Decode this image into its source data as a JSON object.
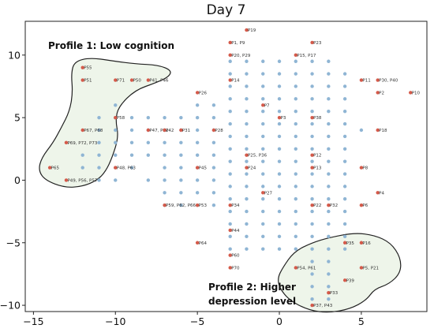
{
  "chart_data": {
    "type": "scatter",
    "title": "Day 7",
    "xlabel": "",
    "ylabel": "",
    "xlim": [
      -15.5,
      9
    ],
    "ylim": [
      -10.5,
      12.7
    ],
    "xticks": [
      "−15",
      "−10",
      "−5",
      "0",
      "5"
    ],
    "xtick_values": [
      -15,
      -10,
      -5,
      0,
      5
    ],
    "yticks": [
      "−10",
      "−5",
      "0",
      "5",
      "10"
    ],
    "ytick_values": [
      -10,
      -5,
      0,
      5,
      10
    ],
    "grid": false,
    "colors": {
      "grid_point": "#8fb5d4",
      "labeled_point": "#d55a4a",
      "region_fill": "#eef5ea",
      "region_stroke": "#222222",
      "axis": "#222222"
    },
    "grid_points": [
      [
        -3,
        9.5
      ],
      [
        -2,
        9.5
      ],
      [
        -1,
        9.5
      ],
      [
        0,
        9.5
      ],
      [
        1,
        9.5
      ],
      [
        2,
        9.5
      ],
      [
        3,
        9.5
      ],
      [
        -3,
        8.5
      ],
      [
        -2,
        8.5
      ],
      [
        -1,
        8.5
      ],
      [
        0,
        8.5
      ],
      [
        1,
        8.5
      ],
      [
        2,
        8.5
      ],
      [
        3,
        8.5
      ],
      [
        4,
        8.5
      ],
      [
        -3,
        7.5
      ],
      [
        -2,
        7.5
      ],
      [
        -1,
        7.5
      ],
      [
        0,
        7.5
      ],
      [
        1,
        7.5
      ],
      [
        2,
        7.5
      ],
      [
        3,
        7.5
      ],
      [
        4,
        7.5
      ],
      [
        -3,
        6.5
      ],
      [
        -2,
        6.5
      ],
      [
        -1,
        6.5
      ],
      [
        0,
        6.5
      ],
      [
        1,
        6.5
      ],
      [
        2,
        6.5
      ],
      [
        3,
        6.5
      ],
      [
        4,
        6.5
      ],
      [
        -10,
        6
      ],
      [
        -5,
        6
      ],
      [
        -4,
        6
      ],
      [
        -3,
        5.5
      ],
      [
        -2,
        5.5
      ],
      [
        -1,
        5.5
      ],
      [
        0,
        5.5
      ],
      [
        1,
        5.5
      ],
      [
        2,
        5.5
      ],
      [
        3,
        5.5
      ],
      [
        4,
        5.5
      ],
      [
        -11,
        5
      ],
      [
        -10,
        5
      ],
      [
        -9,
        5
      ],
      [
        -8,
        5
      ],
      [
        -7,
        5
      ],
      [
        -6,
        5
      ],
      [
        -5,
        5
      ],
      [
        -4,
        5
      ],
      [
        -3,
        4.5
      ],
      [
        -2,
        4.5
      ],
      [
        -1,
        4.5
      ],
      [
        0,
        4.5
      ],
      [
        1,
        4.5
      ],
      [
        2,
        4.5
      ],
      [
        3,
        4.5
      ],
      [
        4,
        4.5
      ],
      [
        -11,
        4
      ],
      [
        -10,
        4
      ],
      [
        -9,
        4
      ],
      [
        -8,
        4
      ],
      [
        -7,
        4
      ],
      [
        -6,
        4
      ],
      [
        -5,
        4
      ],
      [
        -4,
        4
      ],
      [
        5,
        4
      ],
      [
        -3,
        3.5
      ],
      [
        -2,
        3.5
      ],
      [
        -1,
        3.5
      ],
      [
        0,
        3.5
      ],
      [
        1,
        3.5
      ],
      [
        2,
        3.5
      ],
      [
        3,
        3.5
      ],
      [
        4,
        3.5
      ],
      [
        -11,
        3
      ],
      [
        -10,
        3
      ],
      [
        -9,
        3
      ],
      [
        -8,
        3
      ],
      [
        -7,
        3
      ],
      [
        -6,
        3
      ],
      [
        -5,
        3
      ],
      [
        -4,
        3
      ],
      [
        -3,
        2.5
      ],
      [
        -2,
        2.5
      ],
      [
        -1,
        2.5
      ],
      [
        0,
        2.5
      ],
      [
        1,
        2.5
      ],
      [
        2,
        2.5
      ],
      [
        3,
        2.5
      ],
      [
        4,
        2.5
      ],
      [
        -12,
        2
      ],
      [
        -11,
        2
      ],
      [
        -10,
        2
      ],
      [
        -9,
        2
      ],
      [
        -8,
        2
      ],
      [
        -7,
        2
      ],
      [
        -6,
        2
      ],
      [
        -5,
        2
      ],
      [
        -4,
        2
      ],
      [
        -3,
        1.5
      ],
      [
        -2,
        1.5
      ],
      [
        -1,
        1.5
      ],
      [
        0,
        1.5
      ],
      [
        1,
        1.5
      ],
      [
        2,
        1.5
      ],
      [
        3,
        1.5
      ],
      [
        4,
        1.5
      ],
      [
        -12,
        1
      ],
      [
        -11,
        1
      ],
      [
        -10,
        1
      ],
      [
        -9,
        1
      ],
      [
        -7,
        1
      ],
      [
        -6,
        1
      ],
      [
        -5,
        1
      ],
      [
        -4,
        1
      ],
      [
        -3,
        0.5
      ],
      [
        -2,
        0.5
      ],
      [
        -1,
        0.5
      ],
      [
        0,
        0.5
      ],
      [
        1,
        0.5
      ],
      [
        2,
        0.5
      ],
      [
        3,
        0.5
      ],
      [
        4,
        0.5
      ],
      [
        -11,
        0
      ],
      [
        -10,
        0
      ],
      [
        -8,
        0
      ],
      [
        -7,
        0
      ],
      [
        -6,
        0
      ],
      [
        -5,
        0
      ],
      [
        -4,
        0
      ],
      [
        -3,
        -0.5
      ],
      [
        -2,
        -0.5
      ],
      [
        -1,
        -0.5
      ],
      [
        0,
        -0.5
      ],
      [
        1,
        -0.5
      ],
      [
        2,
        -0.5
      ],
      [
        3,
        -0.5
      ],
      [
        4,
        -0.5
      ],
      [
        -7,
        -1
      ],
      [
        -6,
        -1
      ],
      [
        -5,
        -1
      ],
      [
        -4,
        -1
      ],
      [
        -3,
        -1.5
      ],
      [
        -2,
        -1.5
      ],
      [
        -1,
        -1.5
      ],
      [
        0,
        -1.5
      ],
      [
        1,
        -1.5
      ],
      [
        2,
        -1.5
      ],
      [
        3,
        -1.5
      ],
      [
        4,
        -1.5
      ],
      [
        -7,
        -2
      ],
      [
        -6,
        -2
      ],
      [
        -5,
        -2
      ],
      [
        -4,
        -2
      ],
      [
        -3,
        -2.5
      ],
      [
        -2,
        -2.5
      ],
      [
        -1,
        -2.5
      ],
      [
        0,
        -2.5
      ],
      [
        1,
        -2.5
      ],
      [
        2,
        -2.5
      ],
      [
        3,
        -2.5
      ],
      [
        4,
        -2.5
      ],
      [
        -3,
        -3.5
      ],
      [
        -2,
        -3.5
      ],
      [
        -1,
        -3.5
      ],
      [
        0,
        -3.5
      ],
      [
        1,
        -3.5
      ],
      [
        2,
        -3.5
      ],
      [
        3,
        -3.5
      ],
      [
        4,
        -3.5
      ],
      [
        -3,
        -4.5
      ],
      [
        -2,
        -4.5
      ],
      [
        -1,
        -4.5
      ],
      [
        0,
        -4.5
      ],
      [
        1,
        -4.5
      ],
      [
        2,
        -4.5
      ],
      [
        3,
        -4.5
      ],
      [
        4,
        -4.5
      ],
      [
        -3,
        -5.5
      ],
      [
        -2,
        -5.5
      ],
      [
        -1,
        -5.5
      ],
      [
        0,
        -5.5
      ],
      [
        1,
        -5.5
      ],
      [
        2,
        -5.5
      ],
      [
        3,
        -5.5
      ],
      [
        4,
        -5.5
      ],
      [
        2,
        -6.5
      ],
      [
        3,
        -6.5
      ],
      [
        2,
        -7.5
      ],
      [
        3,
        -7.5
      ],
      [
        2,
        -8.5
      ],
      [
        3,
        -8.5
      ],
      [
        2,
        -9.5
      ],
      [
        3,
        -9.5
      ]
    ],
    "labeled_points": [
      {
        "x": -2,
        "y": 12,
        "label": "P19"
      },
      {
        "x": -3,
        "y": 11,
        "label": "P1, P9"
      },
      {
        "x": 2,
        "y": 11,
        "label": "P23"
      },
      {
        "x": -3,
        "y": 10,
        "label": "P20, P29"
      },
      {
        "x": 1,
        "y": 10,
        "label": "P15, P17"
      },
      {
        "x": -12,
        "y": 9,
        "label": "P55"
      },
      {
        "x": -12,
        "y": 8,
        "label": "P51"
      },
      {
        "x": -10,
        "y": 8,
        "label": "P71"
      },
      {
        "x": -9,
        "y": 8,
        "label": "P50"
      },
      {
        "x": -8,
        "y": 8,
        "label": "P41, P46"
      },
      {
        "x": -3,
        "y": 8,
        "label": "P14"
      },
      {
        "x": 5,
        "y": 8,
        "label": "P11"
      },
      {
        "x": 6,
        "y": 8,
        "label": "P30, P40"
      },
      {
        "x": -5,
        "y": 7,
        "label": "P26"
      },
      {
        "x": 6,
        "y": 7,
        "label": "P2"
      },
      {
        "x": 8,
        "y": 7,
        "label": "P10"
      },
      {
        "x": -1,
        "y": 6,
        "label": "P7"
      },
      {
        "x": -10,
        "y": 5,
        "label": "P58"
      },
      {
        "x": 0,
        "y": 5,
        "label": "P3"
      },
      {
        "x": 2,
        "y": 5,
        "label": "P38"
      },
      {
        "x": -12,
        "y": 4,
        "label": "P67, P68"
      },
      {
        "x": -8,
        "y": 4,
        "label": "P47, P52"
      },
      {
        "x": -7,
        "y": 4,
        "label": "P42"
      },
      {
        "x": -6,
        "y": 4,
        "label": "P31"
      },
      {
        "x": -4,
        "y": 4,
        "label": "P28"
      },
      {
        "x": 6,
        "y": 4,
        "label": "P18"
      },
      {
        "x": -13,
        "y": 3,
        "label": "P69, P72, P73"
      },
      {
        "x": -2,
        "y": 2,
        "label": "P25, P36"
      },
      {
        "x": 2,
        "y": 2,
        "label": "P12"
      },
      {
        "x": -14,
        "y": 1,
        "label": "P65"
      },
      {
        "x": -10,
        "y": 1,
        "label": "P48, P63"
      },
      {
        "x": -5,
        "y": 1,
        "label": "P45"
      },
      {
        "x": -2,
        "y": 1,
        "label": "P24"
      },
      {
        "x": 2,
        "y": 1,
        "label": "P13"
      },
      {
        "x": 5,
        "y": 1,
        "label": "P8"
      },
      {
        "x": -13,
        "y": 0,
        "label": "P49, P56, P57"
      },
      {
        "x": -1,
        "y": -1,
        "label": "P27"
      },
      {
        "x": 6,
        "y": -1,
        "label": "P4"
      },
      {
        "x": -7,
        "y": -2,
        "label": "P59, P62, P66"
      },
      {
        "x": -5,
        "y": -2,
        "label": "P53"
      },
      {
        "x": -3,
        "y": -2,
        "label": "P34"
      },
      {
        "x": 2,
        "y": -2,
        "label": "P22"
      },
      {
        "x": 3,
        "y": -2,
        "label": "P32"
      },
      {
        "x": 5,
        "y": -2,
        "label": "P6"
      },
      {
        "x": -3,
        "y": -4,
        "label": "P44"
      },
      {
        "x": -5,
        "y": -5,
        "label": "P64"
      },
      {
        "x": 4,
        "y": -5,
        "label": "P35"
      },
      {
        "x": 5,
        "y": -5,
        "label": "P16"
      },
      {
        "x": -3,
        "y": -6,
        "label": "P60"
      },
      {
        "x": -3,
        "y": -7,
        "label": "P70"
      },
      {
        "x": 1,
        "y": -7,
        "label": "P54, P61"
      },
      {
        "x": 5,
        "y": -7,
        "label": "P5, P21"
      },
      {
        "x": 4,
        "y": -8,
        "label": "P39"
      },
      {
        "x": 3,
        "y": -9,
        "label": "P33"
      },
      {
        "x": 2,
        "y": -10,
        "label": "P37, P43"
      }
    ],
    "regions": [
      {
        "label_lines": [
          "Profile 1: Low cognition"
        ],
        "outline": [
          [
            -12.5,
            9.5
          ],
          [
            -11.5,
            9.8
          ],
          [
            -10,
            9.5
          ],
          [
            -8.8,
            9.3
          ],
          [
            -7.4,
            9.2
          ],
          [
            -6.6,
            8.8
          ],
          [
            -6.7,
            8.3
          ],
          [
            -7.5,
            7.8
          ],
          [
            -8.8,
            7.2
          ],
          [
            -9.8,
            5.9
          ],
          [
            -10,
            4.8
          ],
          [
            -9.8,
            3.5
          ],
          [
            -10.2,
            1.8
          ],
          [
            -10.6,
            0.7
          ],
          [
            -11.1,
            0
          ],
          [
            -12,
            -0.5
          ],
          [
            -13.1,
            -0.6
          ],
          [
            -14.3,
            0
          ],
          [
            -14.7,
            0.8
          ],
          [
            -14.5,
            1.8
          ],
          [
            -13.8,
            3
          ],
          [
            -13.3,
            4.2
          ],
          [
            -12.8,
            5.5
          ],
          [
            -12.6,
            7
          ],
          [
            -12.7,
            8.5
          ]
        ]
      },
      {
        "label_lines": [
          "Profile 2: Higher",
          "depression level"
        ],
        "outline": [
          [
            0.2,
            -7
          ],
          [
            0.9,
            -5.7
          ],
          [
            2,
            -5
          ],
          [
            3,
            -4.6
          ],
          [
            4.6,
            -4.2
          ],
          [
            5.8,
            -4.4
          ],
          [
            6.8,
            -5
          ],
          [
            7.4,
            -6.2
          ],
          [
            7.4,
            -7.4
          ],
          [
            6.7,
            -8.3
          ],
          [
            5.8,
            -8.7
          ],
          [
            5.3,
            -9.6
          ],
          [
            4.3,
            -10.3
          ],
          [
            3,
            -10.6
          ],
          [
            1.8,
            -10.4
          ],
          [
            0.6,
            -9.6
          ],
          [
            0,
            -8.6
          ],
          [
            -0.1,
            -7.8
          ]
        ]
      }
    ]
  }
}
